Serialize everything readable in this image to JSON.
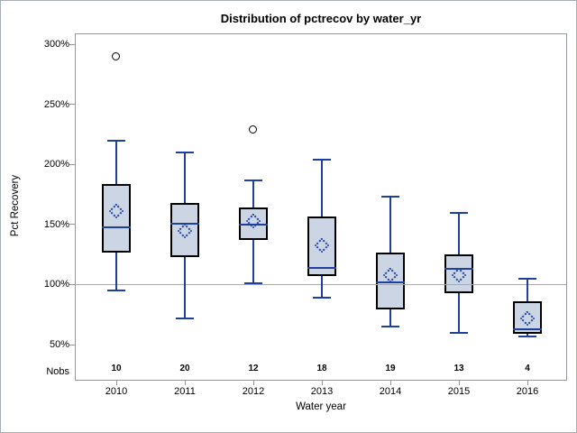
{
  "title": "Distribution of pctrecov by water_yr",
  "y_axis": {
    "label": "Pct Recovery",
    "ticks": [
      {
        "label": "300%",
        "value": 300
      },
      {
        "label": "250%",
        "value": 250
      },
      {
        "label": "200%",
        "value": 200
      },
      {
        "label": "150%",
        "value": 150
      },
      {
        "label": "100%",
        "value": 100
      },
      {
        "label": "50%",
        "value": 50
      }
    ]
  },
  "x_axis": {
    "label": "Water year"
  },
  "nobs_label": "Nobs",
  "reference_line_value": 100,
  "colors": {
    "box_fill": "#ccd5e4",
    "box_border": "#000000",
    "line_blue": "#1e3f9e",
    "reference_line": "#a8a8a8",
    "axis_gray": "#8f969e",
    "figure_border": "#a9aeb5"
  },
  "chart_data": {
    "type": "box",
    "title": "Distribution of pctrecov by water_yr",
    "xlabel": "Water year",
    "ylabel": "Pct Recovery",
    "ylim": [
      20,
      310
    ],
    "ytick_values": [
      50,
      100,
      150,
      200,
      250,
      300
    ],
    "grid": false,
    "reference_line": 100,
    "categories": [
      "2010",
      "2011",
      "2012",
      "2013",
      "2014",
      "2015",
      "2016"
    ],
    "nobs": [
      10,
      20,
      12,
      18,
      19,
      13,
      4
    ],
    "series": [
      {
        "category": "2010",
        "nobs": 10,
        "whisker_low": 95,
        "q1": 127,
        "median": 148,
        "q3": 184,
        "whisker_high": 220,
        "mean": 161,
        "outliers": [
          290
        ]
      },
      {
        "category": "2011",
        "nobs": 20,
        "whisker_low": 72,
        "q1": 123,
        "median": 151,
        "q3": 168,
        "whisker_high": 210,
        "mean": 145,
        "outliers": []
      },
      {
        "category": "2012",
        "nobs": 12,
        "whisker_low": 101,
        "q1": 137,
        "median": 150,
        "q3": 164,
        "whisker_high": 187,
        "mean": 153,
        "outliers": [
          229
        ]
      },
      {
        "category": "2013",
        "nobs": 18,
        "whisker_low": 89,
        "q1": 107,
        "median": 114,
        "q3": 157,
        "whisker_high": 204,
        "mean": 133,
        "outliers": []
      },
      {
        "category": "2014",
        "nobs": 19,
        "whisker_low": 65,
        "q1": 79,
        "median": 102,
        "q3": 127,
        "whisker_high": 173,
        "mean": 108,
        "outliers": []
      },
      {
        "category": "2015",
        "nobs": 13,
        "whisker_low": 60,
        "q1": 93,
        "median": 113,
        "q3": 125,
        "whisker_high": 160,
        "mean": 108,
        "outliers": []
      },
      {
        "category": "2016",
        "nobs": 4,
        "whisker_low": 57,
        "q1": 59,
        "median": 63,
        "q3": 86,
        "whisker_high": 105,
        "mean": 72,
        "outliers": []
      }
    ]
  }
}
